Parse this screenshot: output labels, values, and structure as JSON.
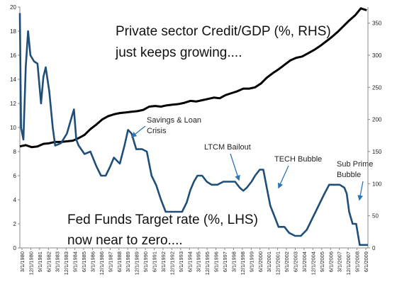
{
  "chart_data": {
    "type": "line",
    "left_axis": {
      "ticks": [
        "0",
        "2",
        "4",
        "6",
        "8",
        "10",
        "12",
        "14",
        "16",
        "18",
        "20"
      ],
      "ylim": [
        0,
        20
      ]
    },
    "right_axis": {
      "ticks": [
        "0",
        "50",
        "100",
        "150",
        "200",
        "250",
        "300",
        "350"
      ],
      "ylim": [
        0,
        375
      ]
    },
    "x_tick_labels": [
      "3/1/1980",
      "12/1/1980",
      "9/1/1981",
      "6/1/1982",
      "3/1/1983",
      "12/1/1983",
      "9/1/1984",
      "6/1/1985",
      "3/1/1986",
      "12/1/1986",
      "9/1/1987",
      "6/1/1988",
      "3/1/1989",
      "12/1/1989",
      "9/1/1990",
      "6/1/1991",
      "3/1/1992",
      "12/1/1992",
      "9/1/1993",
      "6/1/1994",
      "3/1/1995",
      "12/1/1995",
      "9/1/1996",
      "6/1/1997",
      "3/1/1998",
      "12/1/1998",
      "9/1/1999",
      "6/1/2000",
      "3/1/2001",
      "12/1/2001",
      "9/1/2002",
      "6/1/2003",
      "3/1/2004",
      "12/1/2004",
      "9/1/2005",
      "6/1/2006",
      "3/1/2007",
      "12/1/2007",
      "9/1/2008",
      "6/1/2009"
    ],
    "xlim": [
      1980.0,
      2009.6
    ],
    "series": [
      {
        "name": "Private sector Credit/GDP (%, RHS)",
        "axis": "right",
        "color": "#000000",
        "x": [
          1980.0,
          1980.5,
          1981.0,
          1981.5,
          1982.0,
          1982.5,
          1983.0,
          1983.5,
          1984.0,
          1984.5,
          1985.0,
          1985.5,
          1986.0,
          1986.5,
          1987.0,
          1987.5,
          1988.0,
          1988.5,
          1989.0,
          1989.5,
          1990.0,
          1990.5,
          1991.0,
          1991.5,
          1992.0,
          1992.5,
          1993.0,
          1993.5,
          1994.0,
          1994.5,
          1995.0,
          1995.5,
          1996.0,
          1996.5,
          1997.0,
          1997.5,
          1998.0,
          1998.5,
          1999.0,
          1999.5,
          2000.0,
          2000.5,
          2001.0,
          2001.5,
          2002.0,
          2002.5,
          2003.0,
          2003.5,
          2004.0,
          2004.5,
          2005.0,
          2005.5,
          2006.0,
          2006.5,
          2007.0,
          2007.5,
          2008.0,
          2008.5,
          2009.0,
          2009.5
        ],
        "values": [
          158,
          160,
          157,
          158,
          162,
          163,
          165,
          165,
          166,
          167,
          171,
          176,
          185,
          192,
          200,
          205,
          208,
          210,
          211,
          212,
          213,
          215,
          220,
          221,
          220,
          222,
          223,
          224,
          226,
          229,
          228,
          230,
          232,
          234,
          233,
          238,
          241,
          244,
          248,
          248,
          250,
          256,
          265,
          272,
          278,
          285,
          292,
          296,
          298,
          303,
          308,
          314,
          321,
          328,
          336,
          345,
          354,
          362,
          373,
          370
        ]
      },
      {
        "name": "Fed Funds Target rate (%, LHS)",
        "axis": "left",
        "color": "#1f4e79",
        "x": [
          1980.0,
          1980.1,
          1980.3,
          1980.5,
          1980.7,
          1980.9,
          1981.2,
          1981.5,
          1981.8,
          1982.0,
          1982.2,
          1982.5,
          1982.8,
          1983.0,
          1983.5,
          1984.0,
          1984.3,
          1984.6,
          1984.8,
          1985.0,
          1985.5,
          1986.0,
          1986.5,
          1986.9,
          1987.3,
          1987.7,
          1988.0,
          1988.5,
          1988.9,
          1989.2,
          1989.5,
          1989.9,
          1990.4,
          1990.8,
          1991.2,
          1991.6,
          1992.0,
          1992.4,
          1992.8,
          1993.3,
          1993.8,
          1994.2,
          1994.5,
          1994.8,
          1995.1,
          1995.5,
          1995.9,
          1996.3,
          1996.8,
          1997.3,
          1997.8,
          1998.3,
          1998.7,
          1999.0,
          1999.3,
          1999.7,
          2000.0,
          2000.4,
          2000.7,
          2001.0,
          2001.3,
          2001.7,
          2002.0,
          2002.5,
          2002.9,
          2003.4,
          2003.9,
          2004.4,
          2004.9,
          2005.4,
          2005.9,
          2006.3,
          2006.8,
          2007.2,
          2007.6,
          2007.8,
          2008.0,
          2008.3,
          2008.6,
          2008.9,
          2009.2,
          2009.6
        ],
        "values": [
          19.5,
          10.0,
          9.0,
          15.0,
          18.0,
          16.0,
          15.5,
          15.3,
          12.0,
          14.2,
          15.0,
          13.0,
          10.0,
          8.5,
          8.7,
          9.5,
          10.5,
          11.5,
          9.0,
          8.5,
          7.8,
          8.0,
          6.8,
          6.0,
          6.0,
          6.8,
          7.5,
          7.0,
          8.5,
          9.8,
          9.5,
          8.2,
          8.2,
          8.0,
          6.0,
          5.2,
          4.0,
          3.0,
          3.0,
          3.0,
          3.0,
          3.8,
          4.8,
          5.5,
          6.0,
          6.0,
          5.5,
          5.25,
          5.25,
          5.5,
          5.5,
          5.5,
          5.0,
          4.75,
          5.0,
          5.5,
          6.0,
          6.5,
          6.5,
          5.0,
          3.5,
          2.5,
          1.75,
          1.75,
          1.25,
          1.0,
          1.0,
          1.5,
          2.5,
          3.5,
          4.5,
          5.25,
          5.25,
          5.25,
          5.0,
          4.5,
          3.0,
          2.0,
          2.0,
          0.25,
          0.25,
          0.25
        ]
      }
    ],
    "annotations": [
      {
        "id": "credit",
        "lines": [
          "Private sector Credit/GDP (%, RHS)",
          "just keeps growing...."
        ]
      },
      {
        "id": "fed",
        "lines": [
          "Fed Funds Target rate (%, LHS)",
          "now near to zero...."
        ]
      },
      {
        "id": "savings",
        "lines": [
          "Savings & Loan",
          "Crisis"
        ]
      },
      {
        "id": "ltcm",
        "lines": [
          "LTCM  Bailout"
        ]
      },
      {
        "id": "tech",
        "lines": [
          "TECH Bubble"
        ]
      },
      {
        "id": "subprime",
        "lines": [
          "Sub Prime",
          "Bubble"
        ]
      }
    ]
  }
}
